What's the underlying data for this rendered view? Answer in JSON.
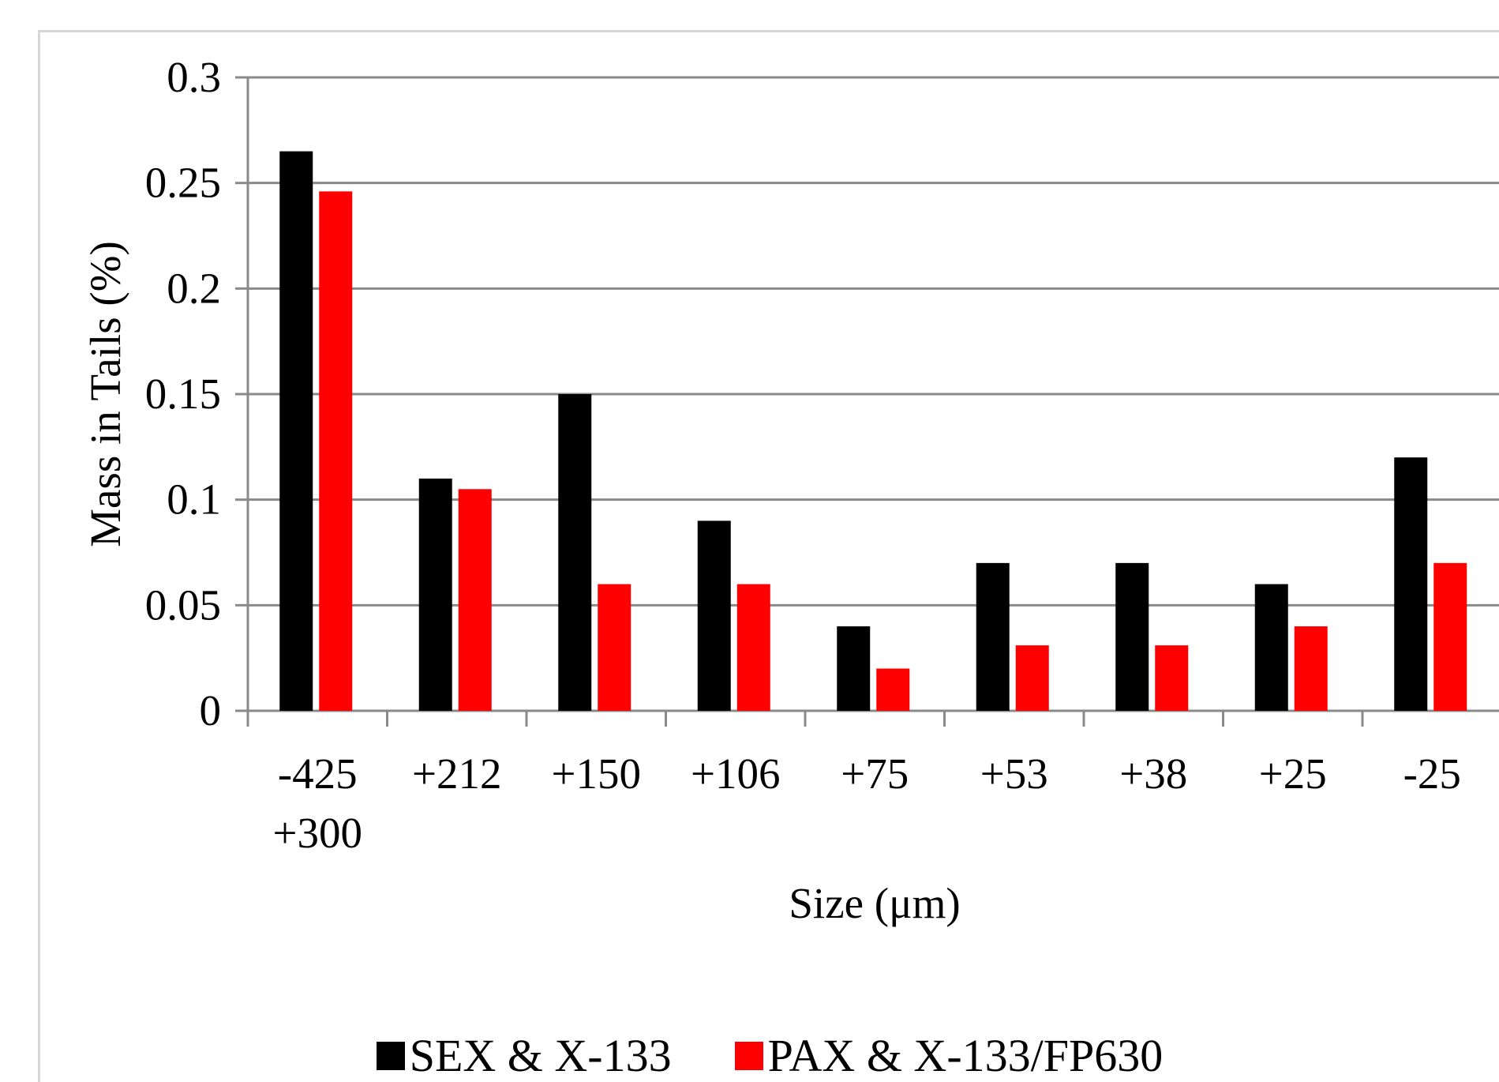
{
  "chart_data": {
    "type": "bar",
    "categories": [
      [
        "-425",
        "+300"
      ],
      [
        "+212"
      ],
      [
        "+150"
      ],
      [
        "+106"
      ],
      [
        "+75"
      ],
      [
        "+53"
      ],
      [
        "+38"
      ],
      [
        "+25"
      ],
      [
        "-25"
      ]
    ],
    "series": [
      {
        "name": "SEX & X-133",
        "color": "#000000",
        "values": [
          0.265,
          0.11,
          0.15,
          0.09,
          0.04,
          0.07,
          0.07,
          0.06,
          0.12
        ]
      },
      {
        "name": "PAX & X-133/FP630",
        "color": "#ff0000",
        "values": [
          0.246,
          0.105,
          0.06,
          0.06,
          0.02,
          0.031,
          0.031,
          0.04,
          0.07
        ]
      }
    ],
    "title": "",
    "xlabel": "Size  (μm)",
    "ylabel": "Mass in Tails  (%)",
    "ylim": [
      0,
      0.3
    ],
    "yticks": [
      "0",
      "0.05",
      "0.1",
      "0.15",
      "0.2",
      "0.25",
      "0.3"
    ],
    "grid": true,
    "legend_position": "bottom-center"
  }
}
